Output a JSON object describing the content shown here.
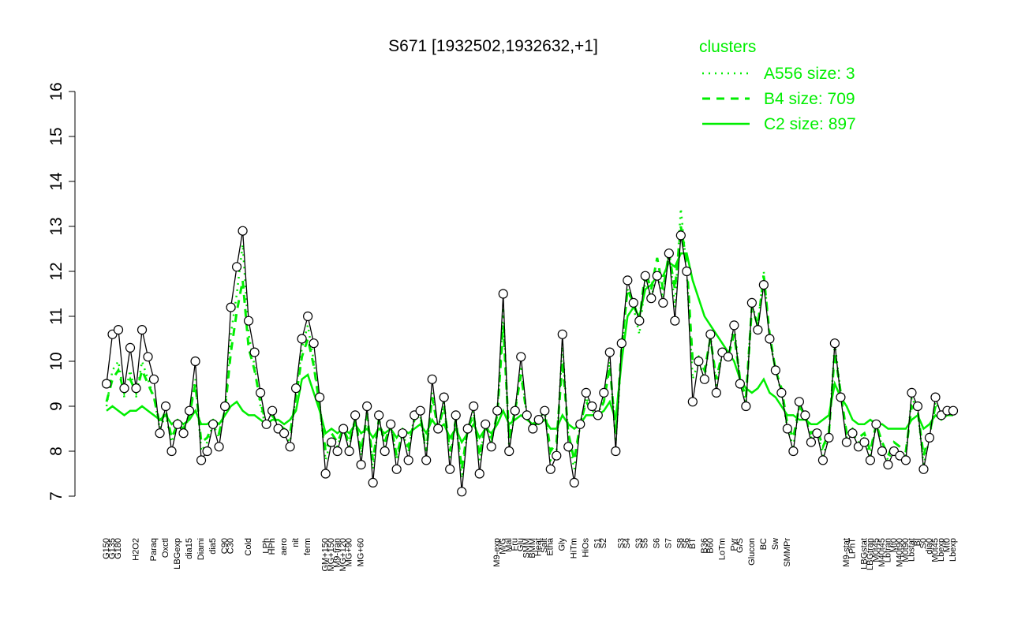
{
  "chart_data": {
    "type": "line",
    "title": "S671 [1932502,1932632,+1]",
    "legend_title": "clusters",
    "legend_position": "top-right",
    "color": "#000000",
    "categories": [
      "G150",
      "G135",
      "G180",
      null,
      null,
      "H2O2",
      null,
      null,
      "Paraq",
      null,
      "Oxctl",
      null,
      "LBGexp",
      null,
      "dia15",
      null,
      "Diami",
      null,
      "dia5",
      null,
      "C90",
      "C30",
      null,
      null,
      "Cold",
      null,
      null,
      "LPh",
      "HPh",
      null,
      "aero",
      null,
      "nit",
      null,
      "ferm",
      null,
      null,
      "GM+150",
      "MG+150",
      "M9-tran",
      "MG+120",
      "MG+90",
      null,
      "MG+60",
      null,
      null,
      null,
      null,
      null,
      null,
      null,
      null,
      null,
      null,
      null,
      null,
      null,
      null,
      null,
      null,
      null,
      null,
      null,
      null,
      null,
      null,
      "M9-exp",
      "M/G",
      "Mal",
      "Fru",
      "Glu",
      "SMM",
      "BMM",
      "Heat",
      "Salt",
      "Etha",
      null,
      "Gly",
      null,
      "HiTm",
      null,
      "HiOs",
      null,
      "S1",
      "S2",
      null,
      null,
      "S3",
      "S4",
      null,
      "S3",
      "S5",
      null,
      "S6",
      null,
      "S7",
      null,
      "S8",
      "S6",
      "BT",
      null,
      "B36",
      "B60",
      null,
      "LoTm",
      null,
      "Pyr",
      "G/S",
      null,
      "Glucon",
      null,
      "BC",
      null,
      "Sw",
      null,
      "SMMPr",
      null,
      null,
      null,
      null,
      null,
      null,
      null,
      null,
      null,
      "M9-stat",
      "LPhT",
      null,
      "LBGstat",
      "LBGtran",
      "M0t45",
      "M40t45",
      "Lbtran",
      "Mt0",
      "M40t90",
      "M0t90",
      "Lbstat",
      "BI",
      "S0",
      "dia0",
      "M0t45",
      "Lbexp",
      "Mt0",
      "Lbexp"
    ],
    "values": [
      9.5,
      10.6,
      10.7,
      9.4,
      10.3,
      9.4,
      10.7,
      10.1,
      9.6,
      8.4,
      9.0,
      8.0,
      8.6,
      8.4,
      8.9,
      10.0,
      7.8,
      8.0,
      8.6,
      8.1,
      9.0,
      11.2,
      12.1,
      12.9,
      10.9,
      10.2,
      9.3,
      8.6,
      8.9,
      8.5,
      8.4,
      8.1,
      9.4,
      10.5,
      11.0,
      10.4,
      9.2,
      7.5,
      8.2,
      8.0,
      8.5,
      8.0,
      8.8,
      7.7,
      9.0,
      7.3,
      8.8,
      8.0,
      8.6,
      7.6,
      8.4,
      7.8,
      8.8,
      8.9,
      7.8,
      9.6,
      8.5,
      9.2,
      7.6,
      8.8,
      7.1,
      8.5,
      9.0,
      7.5,
      8.6,
      8.1,
      8.9,
      11.5,
      8.0,
      8.9,
      10.1,
      8.8,
      8.5,
      8.7,
      8.9,
      7.6,
      7.9,
      10.6,
      8.1,
      7.3,
      8.6,
      9.3,
      9.0,
      8.8,
      9.3,
      10.2,
      8.0,
      10.4,
      11.8,
      11.3,
      10.9,
      11.9,
      11.4,
      11.9,
      11.3,
      12.4,
      10.9,
      12.8,
      12.0,
      9.1,
      10.0,
      9.6,
      10.6,
      9.3,
      10.2,
      10.1,
      10.8,
      9.5,
      9.0,
      11.3,
      10.7,
      11.7,
      10.5,
      9.8,
      9.3,
      8.5,
      8.0,
      9.1,
      8.8,
      8.2,
      8.4,
      7.8,
      8.3,
      10.4,
      9.2,
      8.2,
      8.4,
      8.1,
      8.2,
      7.8,
      8.6,
      8.0,
      7.7,
      8.0,
      7.9,
      7.8,
      9.3,
      9.0,
      7.6,
      8.3,
      9.2,
      8.8,
      8.9,
      8.9
    ],
    "series": [
      {
        "name": "A556 size: 3",
        "color": "#00ee00",
        "style": "dotted",
        "values": [
          9.0,
          9.8,
          10.0,
          9.2,
          9.8,
          9.2,
          10.0,
          9.6,
          9.2,
          8.5,
          8.8,
          8.2,
          8.6,
          8.4,
          8.8,
          9.6,
          8.0,
          8.2,
          8.6,
          8.3,
          8.9,
          10.6,
          11.5,
          12.6,
          10.6,
          9.9,
          9.0,
          8.5,
          8.8,
          8.5,
          8.4,
          8.2,
          9.3,
          10.3,
          10.8,
          10.0,
          9.0,
          7.8,
          8.3,
          8.1,
          8.5,
          8.1,
          8.7,
          7.9,
          8.9,
          7.6,
          8.7,
          8.1,
          8.6,
          7.8,
          8.4,
          8.0,
          8.8,
          8.8,
          7.9,
          9.3,
          8.5,
          9.1,
          7.8,
          8.7,
          7.4,
          8.5,
          8.9,
          7.8,
          8.6,
          8.2,
          8.8,
          11.2,
          8.1,
          8.9,
          9.9,
          8.8,
          8.5,
          8.7,
          8.9,
          7.8,
          8.0,
          10.4,
          8.3,
          7.6,
          8.6,
          9.2,
          8.9,
          8.8,
          9.2,
          10.0,
          8.2,
          10.2,
          11.6,
          11.2,
          10.6,
          11.8,
          11.4,
          12.0,
          11.4,
          12.5,
          11.2,
          13.4,
          12.0,
          9.6,
          10.0,
          9.6,
          10.6,
          9.4,
          10.2,
          10.1,
          10.8,
          9.6,
          9.1,
          11.3,
          10.8,
          12.0,
          10.5,
          9.8,
          9.3,
          8.5,
          8.1,
          9.0,
          8.8,
          8.3,
          8.5,
          7.9,
          8.3,
          10.4,
          9.3,
          8.3,
          8.4,
          8.2,
          8.3,
          7.9,
          8.6,
          8.1,
          7.8,
          8.1,
          8.0,
          7.9,
          9.2,
          8.9,
          7.7,
          8.3,
          9.1,
          8.8,
          8.9,
          8.9
        ]
      },
      {
        "name": "B4 size: 709",
        "color": "#00ee00",
        "style": "dashed",
        "values": [
          9.1,
          9.6,
          9.8,
          9.3,
          9.6,
          9.3,
          9.8,
          9.5,
          9.2,
          8.6,
          8.9,
          8.3,
          8.6,
          8.5,
          8.8,
          9.5,
          8.2,
          8.3,
          8.6,
          8.4,
          8.9,
          10.2,
          11.1,
          11.8,
          10.3,
          9.8,
          9.1,
          8.6,
          8.8,
          8.6,
          8.5,
          8.4,
          9.2,
          10.1,
          10.5,
          9.9,
          9.0,
          8.0,
          8.4,
          8.2,
          8.5,
          8.2,
          8.7,
          8.0,
          8.8,
          7.8,
          8.7,
          8.2,
          8.6,
          7.9,
          8.4,
          8.1,
          8.7,
          8.8,
          8.0,
          9.2,
          8.5,
          9.0,
          8.0,
          8.7,
          7.6,
          8.5,
          8.8,
          7.9,
          8.6,
          8.3,
          8.8,
          10.8,
          8.3,
          8.9,
          9.7,
          8.8,
          8.6,
          8.7,
          8.9,
          8.0,
          8.2,
          10.0,
          8.4,
          7.8,
          8.6,
          9.1,
          8.9,
          8.8,
          9.1,
          9.9,
          8.4,
          10.3,
          11.6,
          11.3,
          10.9,
          12.0,
          11.6,
          12.3,
          11.6,
          12.4,
          11.6,
          13.0,
          12.2,
          10.0,
          10.1,
          9.8,
          10.5,
          9.6,
          10.2,
          10.1,
          10.6,
          9.6,
          9.2,
          11.2,
          10.8,
          11.9,
          10.6,
          9.8,
          9.4,
          8.6,
          8.3,
          9.0,
          8.8,
          8.4,
          8.5,
          8.1,
          8.4,
          10.2,
          9.3,
          8.4,
          8.5,
          8.3,
          8.4,
          8.0,
          8.6,
          8.2,
          7.9,
          8.2,
          8.1,
          8.0,
          9.0,
          8.9,
          7.9,
          8.4,
          9.0,
          8.8,
          8.9,
          8.9
        ]
      },
      {
        "name": "C2 size: 897",
        "color": "#00ee00",
        "style": "solid",
        "values": [
          8.9,
          9.0,
          8.9,
          8.8,
          8.9,
          8.9,
          9.0,
          8.9,
          8.8,
          8.7,
          8.8,
          8.6,
          8.7,
          8.6,
          8.7,
          8.9,
          8.6,
          8.6,
          8.7,
          8.6,
          8.8,
          9.0,
          9.1,
          8.9,
          8.8,
          8.8,
          8.7,
          8.6,
          8.7,
          8.7,
          8.6,
          8.7,
          8.9,
          9.6,
          9.7,
          9.3,
          8.9,
          8.4,
          8.5,
          8.4,
          8.5,
          8.4,
          8.6,
          8.4,
          8.5,
          8.3,
          8.5,
          8.4,
          8.5,
          8.3,
          8.5,
          8.4,
          8.5,
          8.6,
          8.4,
          8.7,
          8.5,
          8.6,
          8.3,
          8.5,
          8.2,
          8.4,
          8.6,
          8.3,
          8.5,
          8.4,
          8.6,
          8.9,
          8.6,
          8.7,
          8.8,
          8.7,
          8.6,
          8.6,
          8.7,
          8.5,
          8.5,
          8.8,
          8.6,
          8.5,
          8.6,
          8.8,
          8.8,
          8.8,
          8.9,
          9.1,
          8.7,
          10.0,
          11.0,
          11.2,
          11.0,
          11.6,
          11.7,
          11.9,
          11.9,
          12.2,
          12.1,
          12.4,
          12.4,
          11.8,
          11.4,
          11.0,
          10.8,
          10.6,
          10.4,
          10.2,
          10.0,
          9.6,
          9.4,
          9.3,
          9.4,
          9.6,
          9.3,
          9.2,
          9.0,
          8.8,
          8.8,
          8.7,
          8.7,
          8.6,
          8.6,
          8.7,
          8.8,
          9.5,
          9.2,
          9.0,
          8.7,
          8.6,
          8.6,
          8.7,
          8.6,
          8.6,
          8.5,
          8.5,
          8.5,
          8.5,
          8.7,
          8.8,
          8.5,
          8.6,
          8.8,
          8.7,
          8.8,
          8.8
        ]
      }
    ],
    "ylim": [
      7,
      16
    ],
    "yticks": [
      7,
      8,
      9,
      10,
      11,
      12,
      13,
      14,
      15,
      16
    ]
  }
}
